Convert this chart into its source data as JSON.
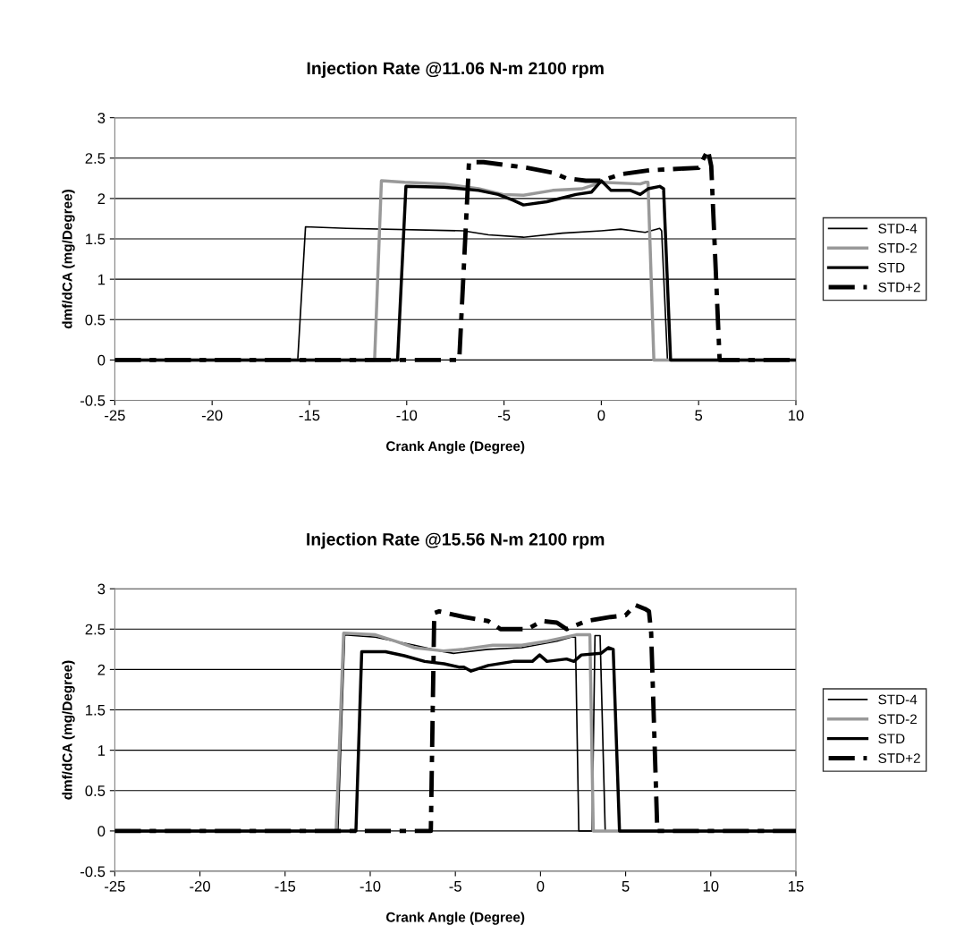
{
  "chart_data": [
    {
      "type": "line",
      "title": "Injection Rate @11.06 N-m 2100 rpm",
      "xlabel": "Crank Angle (Degree)",
      "ylabel": "dmf/dCA (mg/Degree)",
      "xlim": [
        -25,
        10
      ],
      "xticks": [
        -25,
        -20,
        -15,
        -10,
        -5,
        0,
        5,
        10
      ],
      "ylim": [
        -0.5,
        3
      ],
      "yticks": [
        -0.5,
        0,
        0.5,
        1,
        1.5,
        2,
        2.5,
        3
      ],
      "grid": "y",
      "legend": "right",
      "series": [
        {
          "name": "STD-4",
          "color": "#000000",
          "line_style": "solid",
          "x": [
            -25,
            -15.6,
            -15.2,
            -13.1,
            -7.1,
            -5.8,
            -4.0,
            -2.0,
            0,
            1.0,
            2.25,
            3.0,
            3.1,
            3.4,
            10
          ],
          "values": [
            0,
            0,
            1.65,
            1.63,
            1.6,
            1.55,
            1.52,
            1.57,
            1.6,
            1.62,
            1.58,
            1.63,
            1.6,
            0,
            0
          ]
        },
        {
          "name": "STD-2",
          "color": "#999999",
          "line_style": "solid",
          "x": [
            -25,
            -11.65,
            -11.3,
            -10.1,
            -8.1,
            -6.3,
            -5.05,
            -4.0,
            -2.5,
            -1.0,
            0,
            2.0,
            2.25,
            2.4,
            2.7,
            10
          ],
          "values": [
            0,
            0,
            2.22,
            2.2,
            2.18,
            2.12,
            2.05,
            2.04,
            2.1,
            2.12,
            2.2,
            2.18,
            2.2,
            2.2,
            0,
            0
          ]
        },
        {
          "name": "STD",
          "color": "#000000",
          "line_style": "solid",
          "x": [
            -25,
            -10.47,
            -10.04,
            -8.1,
            -6.3,
            -5.3,
            -4.55,
            -4.0,
            -2.8,
            -1.3,
            -0.5,
            0,
            0.5,
            1.5,
            2.0,
            2.4,
            3.0,
            3.2,
            3.56,
            10
          ],
          "values": [
            0,
            0,
            2.15,
            2.14,
            2.1,
            2.05,
            1.98,
            1.92,
            1.96,
            2.05,
            2.08,
            2.22,
            2.1,
            2.1,
            2.05,
            2.12,
            2.15,
            2.12,
            0,
            0
          ]
        },
        {
          "name": "STD+2",
          "color": "#000000",
          "line_style": "dashed",
          "x": [
            -25,
            -7.3,
            -6.8,
            -6.05,
            -3.8,
            -2.5,
            -1.8,
            -0.8,
            0,
            1.0,
            2.5,
            5.0,
            5.48,
            5.65,
            6.08,
            10
          ],
          "values": [
            0,
            0,
            2.45,
            2.45,
            2.38,
            2.32,
            2.25,
            2.22,
            2.22,
            2.3,
            2.35,
            2.38,
            2.6,
            2.4,
            0,
            0
          ]
        }
      ]
    },
    {
      "type": "line",
      "title": "Injection Rate @15.56 N-m 2100 rpm",
      "xlabel": "Crank Angle (Degree)",
      "ylabel": "dmf/dCA (mg/Degree)",
      "xlim": [
        -25,
        15
      ],
      "xticks": [
        -25,
        -20,
        -15,
        -10,
        -5,
        0,
        5,
        10,
        15
      ],
      "ylim": [
        -0.5,
        3
      ],
      "yticks": [
        -0.5,
        0,
        0.5,
        1,
        1.5,
        2,
        2.5,
        3
      ],
      "grid": "y",
      "legend": "right",
      "series": [
        {
          "name": "STD-4",
          "color": "#000000",
          "line_style": "solid",
          "x": [
            -25,
            -11.9,
            -11.5,
            -9.7,
            -7.4,
            -5.7,
            -5.1,
            -3.1,
            -1.1,
            0.96,
            1.8,
            2.05,
            2.25,
            3.03,
            3.2,
            3.5,
            3.8,
            15
          ],
          "values": [
            0,
            0,
            2.43,
            2.4,
            2.3,
            2.22,
            2.2,
            2.25,
            2.27,
            2.35,
            2.4,
            2.4,
            0,
            0,
            2.42,
            2.42,
            0,
            0
          ]
        },
        {
          "name": "STD-2",
          "color": "#999999",
          "line_style": "solid",
          "x": [
            -25,
            -12.0,
            -11.56,
            -9.7,
            -8.5,
            -7.4,
            -5.7,
            -4.5,
            -2.8,
            -1.1,
            0.4,
            1.5,
            2.1,
            2.7,
            2.9,
            3.1,
            15
          ],
          "values": [
            0,
            0,
            2.45,
            2.43,
            2.35,
            2.27,
            2.23,
            2.25,
            2.3,
            2.3,
            2.35,
            2.4,
            2.43,
            2.43,
            2.43,
            0,
            0
          ]
        },
        {
          "name": "STD",
          "color": "#000000",
          "line_style": "solid",
          "x": [
            -25,
            -10.84,
            -10.5,
            -9.1,
            -8.0,
            -6.8,
            -5.66,
            -4.8,
            -4.5,
            -4.08,
            -3.07,
            -1.6,
            -0.48,
            -0.05,
            0.38,
            1.53,
            1.96,
            2.4,
            3.55,
            3.98,
            4.27,
            4.64,
            15
          ],
          "values": [
            0,
            0,
            2.22,
            2.22,
            2.17,
            2.1,
            2.07,
            2.03,
            2.03,
            1.98,
            2.05,
            2.1,
            2.1,
            2.18,
            2.1,
            2.13,
            2.1,
            2.18,
            2.2,
            2.27,
            2.25,
            0,
            0
          ]
        },
        {
          "name": "STD+2",
          "color": "#000000",
          "line_style": "dashed",
          "x": [
            -25,
            -6.44,
            -6.24,
            -5.95,
            -4.5,
            -3.07,
            -2.35,
            -0.77,
            0.09,
            0.96,
            1.53,
            2.68,
            4.12,
            4.99,
            5.56,
            6.14,
            6.37,
            6.5,
            6.86,
            15
          ],
          "values": [
            0,
            0,
            2.7,
            2.72,
            2.65,
            2.6,
            2.5,
            2.5,
            2.6,
            2.58,
            2.5,
            2.6,
            2.65,
            2.67,
            2.8,
            2.75,
            2.72,
            2.45,
            0,
            0
          ]
        }
      ]
    }
  ]
}
